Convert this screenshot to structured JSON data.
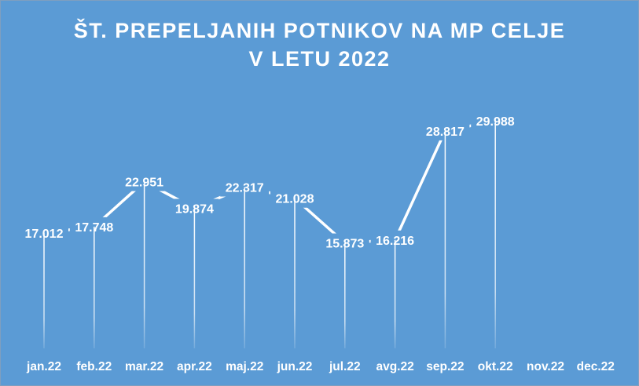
{
  "chart_data": {
    "type": "line",
    "title_lines": [
      "ŠT. PREPELJANIH POTNIKOV NA MP CELJE",
      "V LETU 2022"
    ],
    "categories": [
      "jan.22",
      "feb.22",
      "mar.22",
      "apr.22",
      "maj.22",
      "jun.22",
      "jul.22",
      "avg.22",
      "sep.22",
      "okt.22",
      "nov.22",
      "dec.22"
    ],
    "values": [
      17012,
      17748,
      22951,
      19874,
      22317,
      21028,
      15873,
      16216,
      28817,
      29988,
      null,
      null
    ],
    "value_labels": [
      "17.012",
      "17.748",
      "22.951",
      "19.874",
      "22.317",
      "21.028",
      "15.873",
      "16.216",
      "28.817",
      "29.988",
      "",
      ""
    ],
    "drop_lines": true,
    "line_color": "#ffffff",
    "background_color": "#5b9bd5",
    "grid": false,
    "legend": "none"
  }
}
